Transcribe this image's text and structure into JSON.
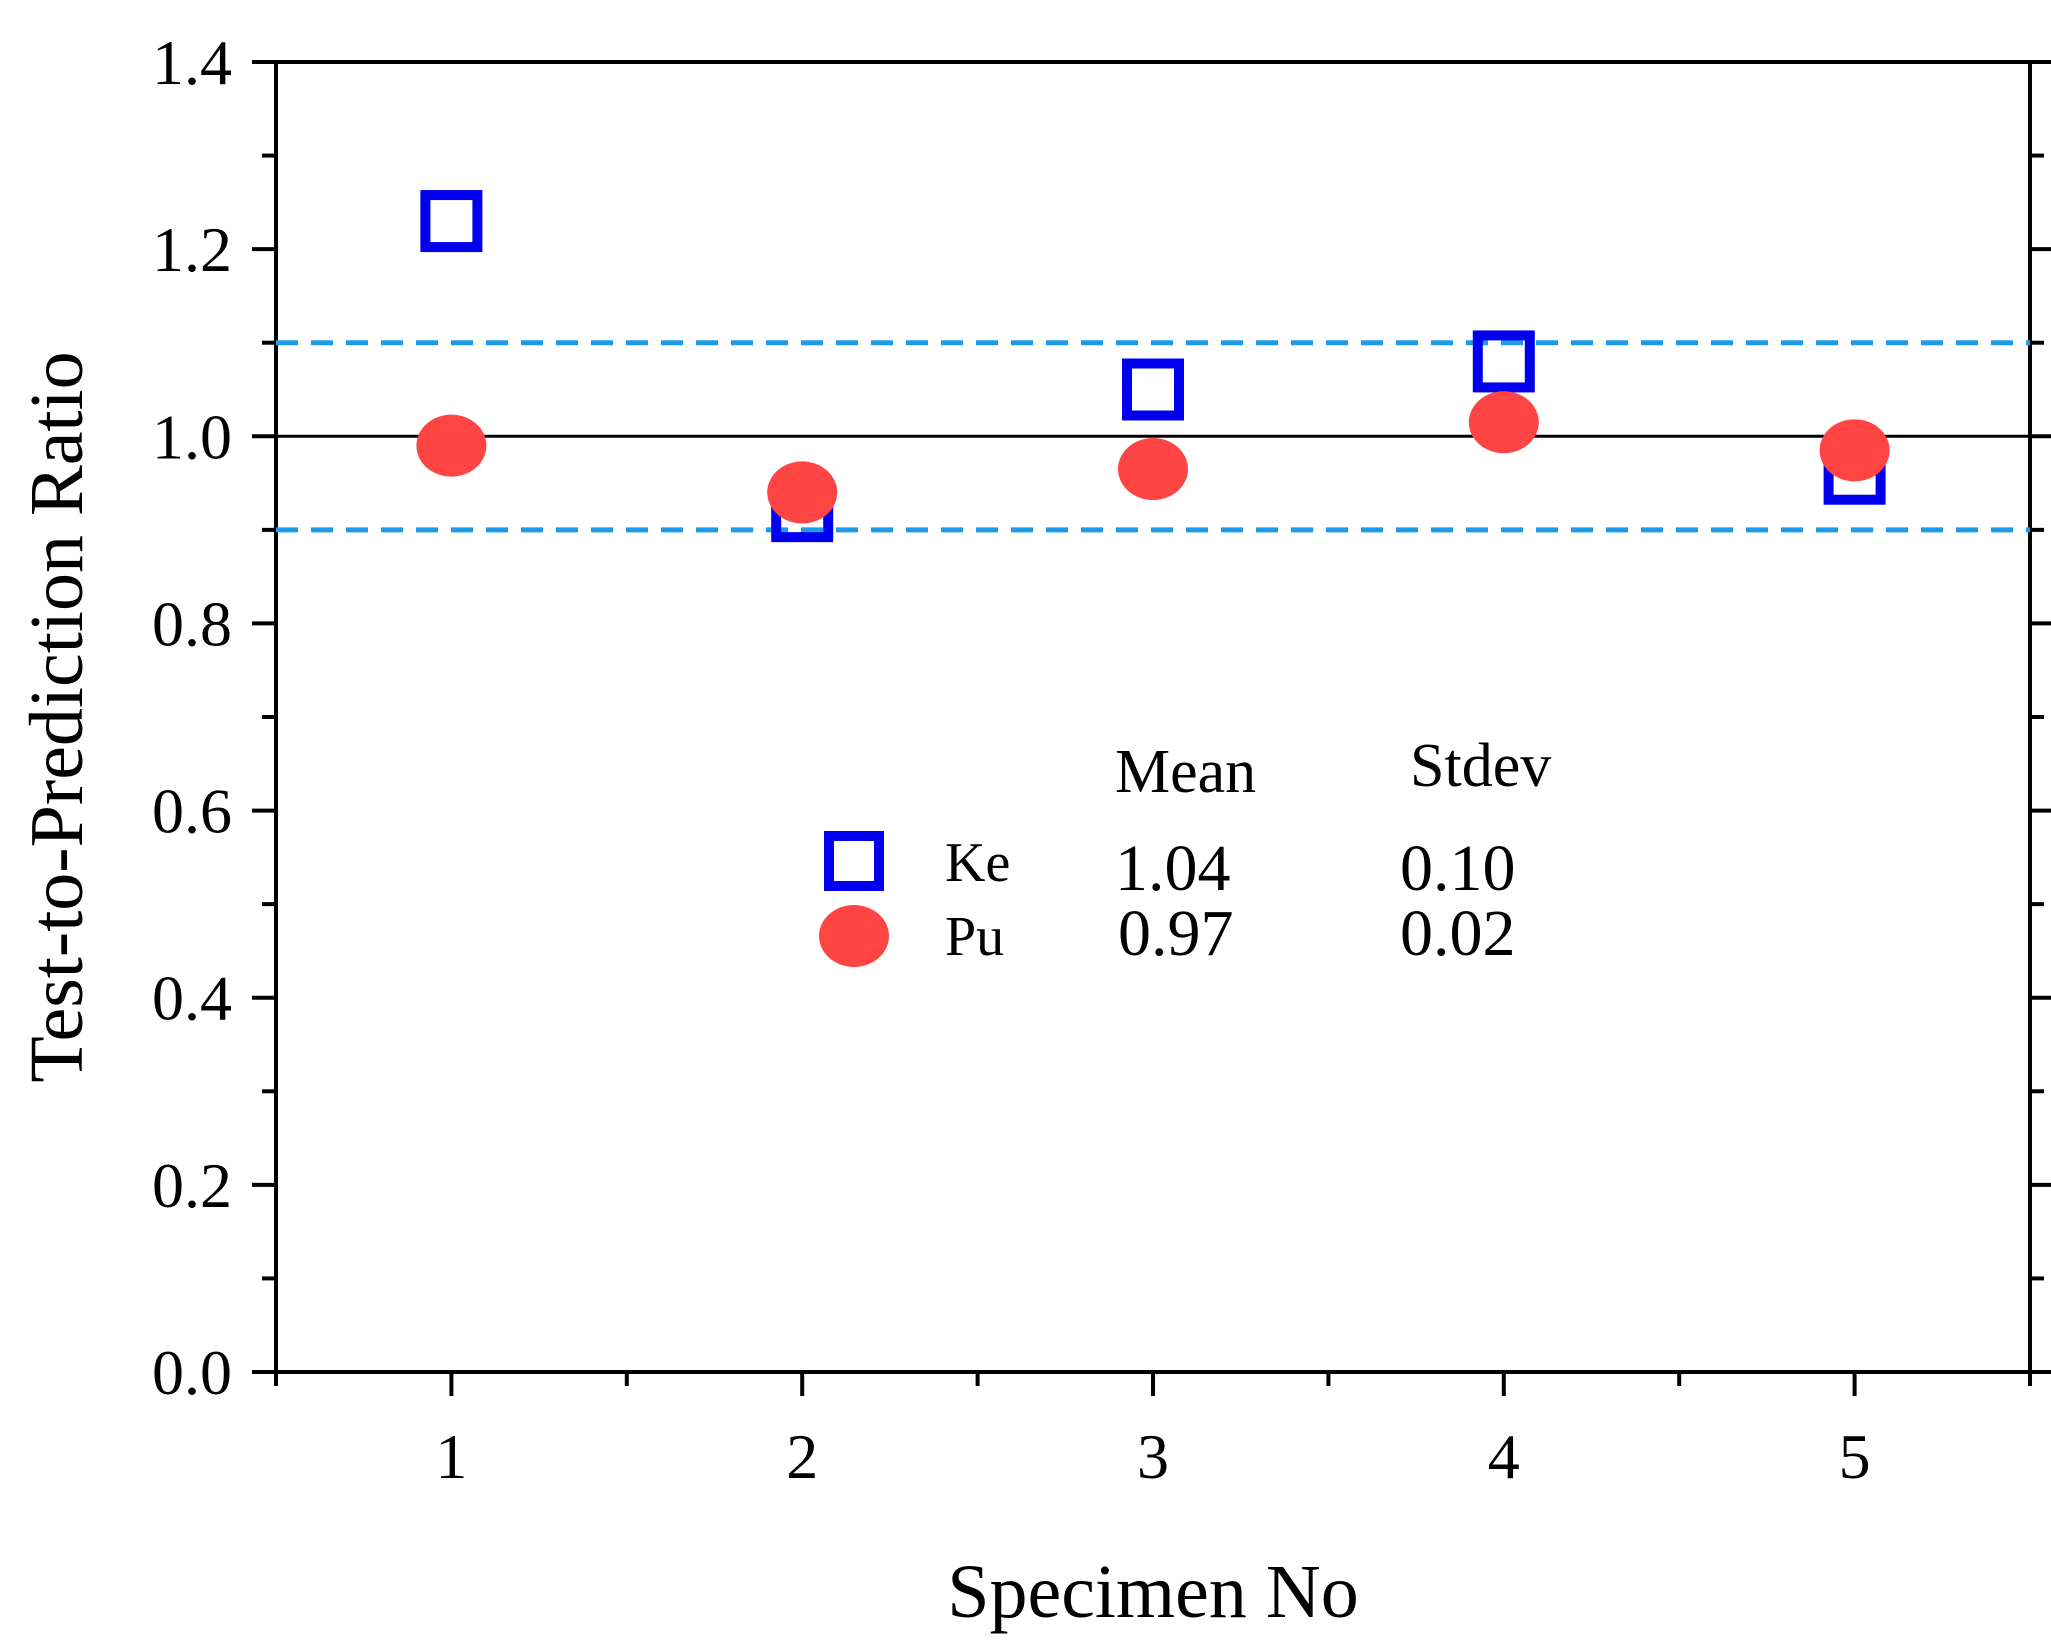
{
  "chart_data": {
    "type": "scatter",
    "title": "",
    "xlabel": "Specimen No",
    "ylabel": "Test-to-Prediction Ratio",
    "xlim": [
      0.5,
      5.5
    ],
    "ylim": [
      0.0,
      1.4
    ],
    "x_ticks": [
      "1",
      "2",
      "3",
      "4",
      "5"
    ],
    "y_ticks": [
      "0.0",
      "0.2",
      "0.4",
      "0.6",
      "0.8",
      "1.0",
      "1.2",
      "1.4"
    ],
    "series": [
      {
        "name": "Ke",
        "marker": "open-square",
        "color": "#0000ee",
        "x": [
          1,
          2,
          3,
          4,
          5
        ],
        "y": [
          1.23,
          0.92,
          1.05,
          1.08,
          0.96
        ]
      },
      {
        "name": "Pu",
        "marker": "filled-circle",
        "color": "#ff4444",
        "x": [
          1,
          2,
          3,
          4,
          5
        ],
        "y": [
          0.99,
          0.94,
          0.965,
          1.015,
          0.985
        ]
      }
    ],
    "reference_lines": [
      {
        "y": 1.0,
        "style": "solid",
        "color": "#000000"
      },
      {
        "y": 1.1,
        "style": "dashed",
        "color": "#1e9be8"
      },
      {
        "y": 0.9,
        "style": "dashed",
        "color": "#1e9be8"
      }
    ],
    "stats_table": {
      "header_mean": "Mean",
      "header_stdev": "Stdev",
      "rows": [
        {
          "name": "Ke",
          "mean": "1.04",
          "stdev": "0.10"
        },
        {
          "name": "Pu",
          "mean": "0.97",
          "stdev": "0.02"
        }
      ]
    }
  }
}
